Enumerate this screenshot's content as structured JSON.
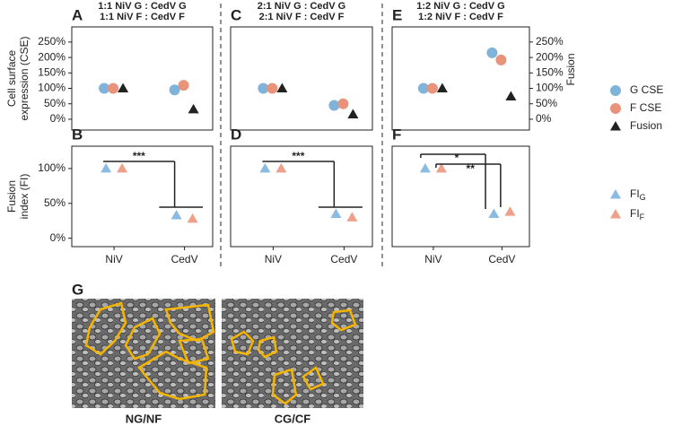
{
  "chart_data": [
    {
      "type": "scatter",
      "panel": "A",
      "title": "1:1 NiV G : CedV G",
      "subtitle": "1:1 NiV F : CedV F",
      "ylabel": [
        "Cell surface",
        "expression (CSE)"
      ],
      "series": [
        {
          "color": "#7fb3d9",
          "marker": "circle",
          "values": [
            100,
            95
          ]
        },
        {
          "color": "#e8937a",
          "marker": "circle",
          "values": [
            100,
            110
          ]
        },
        {
          "color": "#222222",
          "marker": "triangle",
          "values": [
            100,
            32
          ]
        }
      ],
      "ylim": [
        -35,
        299
      ],
      "yticks": [
        {
          "value": 0,
          "label": "0%"
        },
        {
          "value": 50,
          "label": "50%"
        },
        {
          "value": 100,
          "label": "100%"
        },
        {
          "value": 150,
          "label": "150%"
        },
        {
          "value": 200,
          "label": "200%"
        },
        {
          "value": 250,
          "label": "250%"
        }
      ]
    },
    {
      "type": "scatter",
      "panel": "B",
      "ylabel": [
        "Fusion",
        "index (FI)"
      ],
      "categories": [
        "NiV",
        "CedV"
      ],
      "series": [
        {
          "color": "#8bbbe0",
          "marker": "triangle",
          "values": [
            100,
            33
          ]
        },
        {
          "color": "#eda08a",
          "marker": "triangle",
          "values": [
            100,
            28
          ]
        }
      ],
      "ylim": [
        -12,
        132
      ],
      "yticks": [
        {
          "value": 0,
          "label": "0%"
        },
        {
          "value": 50,
          "label": "50%"
        },
        {
          "value": 100,
          "label": "100%"
        }
      ],
      "annotations": [
        {
          "text": "***"
        }
      ]
    },
    {
      "type": "scatter",
      "panel": "C",
      "title": "2:1 NiV G : CedV G",
      "subtitle": "2:1 NiV F : CedV F",
      "series": [
        {
          "color": "#7fb3d9",
          "marker": "circle",
          "values": [
            100,
            45
          ]
        },
        {
          "color": "#e8937a",
          "marker": "circle",
          "values": [
            100,
            50
          ]
        },
        {
          "color": "#222222",
          "marker": "triangle",
          "values": [
            100,
            16
          ]
        }
      ],
      "ylim": [
        -35,
        299
      ]
    },
    {
      "type": "scatter",
      "panel": "D",
      "categories": [
        "NiV",
        "CedV"
      ],
      "series": [
        {
          "color": "#8bbbe0",
          "marker": "triangle",
          "values": [
            100,
            35
          ]
        },
        {
          "color": "#eda08a",
          "marker": "triangle",
          "values": [
            100,
            30
          ]
        }
      ],
      "ylim": [
        -12,
        132
      ],
      "annotations": [
        {
          "text": "***"
        }
      ]
    },
    {
      "type": "scatter",
      "panel": "E",
      "title": "1:2 NiV G : CedV G",
      "subtitle": "1:2 NiV F : CedV F",
      "y2label": "Fusion",
      "series": [
        {
          "color": "#7fb3d9",
          "marker": "circle",
          "values": [
            100,
            215
          ]
        },
        {
          "color": "#e8937a",
          "marker": "circle",
          "values": [
            100,
            192
          ]
        },
        {
          "color": "#222222",
          "marker": "triangle",
          "values": [
            100,
            74
          ],
          "axis": "y2"
        }
      ],
      "ylim": [
        -35,
        299
      ],
      "y2lim": [
        -35,
        299
      ],
      "y2ticks": [
        {
          "value": 0,
          "label": "0%"
        },
        {
          "value": 50,
          "label": "50%"
        },
        {
          "value": 100,
          "label": "100%"
        },
        {
          "value": 150,
          "label": "150%"
        },
        {
          "value": 200,
          "label": "200%"
        },
        {
          "value": 250,
          "label": "250%"
        }
      ]
    },
    {
      "type": "scatter",
      "panel": "F",
      "categories": [
        "NiV",
        "CedV"
      ],
      "series": [
        {
          "color": "#8bbbe0",
          "marker": "triangle",
          "values": [
            100,
            35
          ]
        },
        {
          "color": "#eda08a",
          "marker": "triangle",
          "values": [
            100,
            38
          ]
        }
      ],
      "ylim": [
        -12,
        132
      ],
      "annotations": [
        {
          "text": "*"
        },
        {
          "text": "**"
        }
      ]
    }
  ],
  "legend": [
    {
      "name": "G CSE",
      "color": "#7fb3d9",
      "marker": "circle"
    },
    {
      "name": "F CSE",
      "color": "#e8937a",
      "marker": "circle"
    },
    {
      "name": "Fusion",
      "color": "#222222",
      "marker": "triangle"
    }
  ],
  "legend_fi": [
    {
      "name": "FI",
      "subscript": "G",
      "color": "#8bbbe0",
      "marker": "triangle"
    },
    {
      "name": "FI",
      "subscript": "F",
      "color": "#eda08a",
      "marker": "triangle"
    }
  ],
  "panel_g": {
    "label": "G",
    "images": [
      {
        "label": "NG/NF"
      },
      {
        "label": "CG/CF"
      }
    ]
  }
}
